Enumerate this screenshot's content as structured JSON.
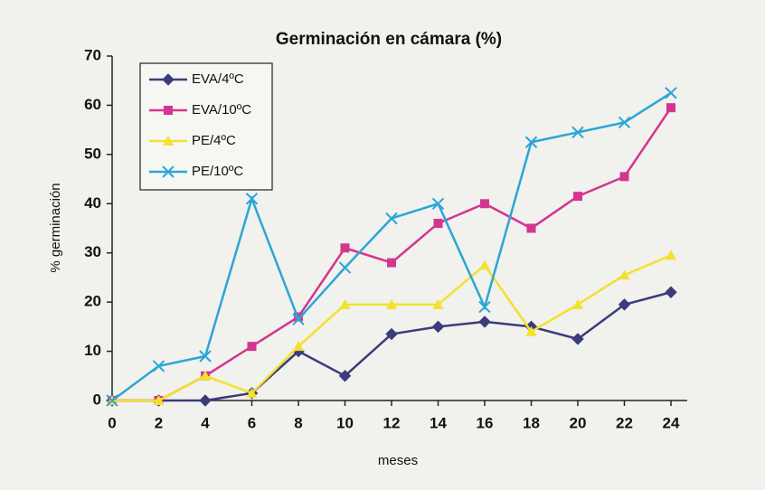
{
  "chart_data": {
    "type": "line",
    "title": "Germinación en cámara (%)",
    "x_label": "meses",
    "y_label": "% germinación",
    "x": [
      0,
      2,
      4,
      6,
      8,
      10,
      12,
      14,
      16,
      18,
      20,
      22,
      24
    ],
    "series": [
      {
        "name": "EVA/4ºC",
        "color": "#3a3c7c",
        "marker": "diamond",
        "values": [
          0,
          0,
          0,
          1.5,
          10,
          5,
          13.5,
          15,
          16,
          15,
          12.5,
          19.5,
          22
        ]
      },
      {
        "name": "EVA/10ºC",
        "color": "#d4358e",
        "marker": "square",
        "values": [
          0,
          0,
          5,
          11,
          17,
          31,
          28,
          36,
          40,
          35,
          41.5,
          45.5,
          59.5
        ]
      },
      {
        "name": "PE/4ºC",
        "color": "#f2e22c",
        "marker": "triangle",
        "values": [
          0,
          0,
          5,
          1.5,
          11,
          19.5,
          19.5,
          19.5,
          27.5,
          14,
          19.5,
          25.5,
          29.5
        ]
      },
      {
        "name": "PE/10ºC",
        "color": "#2ba6d6",
        "marker": "x",
        "values": [
          0,
          7,
          9,
          41,
          16.5,
          27,
          37,
          40,
          19,
          52.5,
          54.5,
          56.5,
          62.5
        ]
      }
    ],
    "xlim": [
      0,
      24
    ],
    "xticks": [
      0,
      2,
      4,
      6,
      8,
      10,
      12,
      14,
      16,
      18,
      20,
      22,
      24
    ],
    "ylim": [
      0,
      70
    ],
    "yticks": [
      0,
      10,
      20,
      30,
      40,
      50,
      60,
      70
    ],
    "grid": false,
    "legend": "upper left"
  }
}
